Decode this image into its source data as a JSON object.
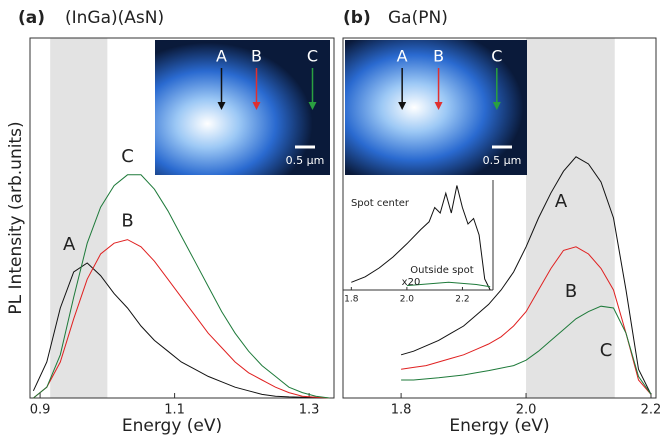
{
  "chart_data": [
    {
      "type": "line",
      "panel_label": "(a)",
      "title": "(InGa)(AsN)",
      "xlabel": "Energy (eV)",
      "ylabel": "PL Intensity (arb.units)",
      "xlim": [
        0.885,
        1.337
      ],
      "ylim": [
        0,
        100
      ],
      "xticks": [
        0.9,
        1.1,
        1.3
      ],
      "highlight_range": [
        0.915,
        1.0
      ],
      "x": [
        0.89,
        0.91,
        0.93,
        0.95,
        0.97,
        0.99,
        1.01,
        1.03,
        1.05,
        1.07,
        1.09,
        1.11,
        1.13,
        1.15,
        1.17,
        1.19,
        1.21,
        1.23,
        1.25,
        1.27,
        1.29,
        1.31,
        1.33
      ],
      "series": [
        {
          "name": "A",
          "color": "#111111",
          "values": [
            2,
            10,
            25,
            35,
            37.5,
            34,
            29,
            25,
            20,
            16,
            13,
            10,
            8,
            6,
            4.5,
            3,
            2,
            1,
            0.5,
            0.3,
            0.2,
            0.1,
            0
          ]
        },
        {
          "name": "B",
          "color": "#e02020",
          "values": [
            0,
            3,
            10,
            22,
            33,
            40,
            43,
            44,
            42,
            38,
            33,
            28,
            23,
            18,
            14,
            10,
            7,
            5,
            3,
            1.5,
            0.5,
            0.2,
            0
          ]
        },
        {
          "name": "C",
          "color": "#1e7a3a",
          "values": [
            0,
            3,
            12,
            28,
            43,
            53,
            59,
            62,
            62,
            58,
            52,
            45,
            38,
            31,
            24,
            18,
            13,
            9,
            6,
            3,
            1.5,
            0.5,
            0
          ]
        }
      ],
      "inset_image": {
        "labels": [
          "A",
          "B",
          "C"
        ],
        "scale": "0.5 μm"
      }
    },
    {
      "type": "line",
      "panel_label": "(b)",
      "title": "Ga(PN)",
      "xlabel": "Energy (eV)",
      "xlim": [
        1.707,
        2.208
      ],
      "ylim": [
        0,
        100
      ],
      "xticks": [
        1.8,
        {
          "value": 2,
          "label": "2.0"
        },
        2.2
      ],
      "highlight_range": [
        2.0,
        2.142
      ],
      "x": [
        1.8,
        1.82,
        1.84,
        1.86,
        1.88,
        1.9,
        1.92,
        1.94,
        1.96,
        1.98,
        2.0,
        2.02,
        2.04,
        2.06,
        2.08,
        2.1,
        2.12,
        2.14,
        2.16,
        2.18,
        2.2
      ],
      "series": [
        {
          "name": "A",
          "color": "#111111",
          "values": [
            12,
            13,
            14.5,
            16,
            18,
            20,
            23,
            26,
            30,
            35,
            42,
            50,
            57,
            63,
            67,
            65,
            60,
            50,
            30,
            8,
            1
          ]
        },
        {
          "name": "B",
          "color": "#e02020",
          "values": [
            8,
            8.5,
            9,
            10,
            11,
            12,
            13.5,
            15,
            17,
            20,
            24,
            30,
            36,
            41,
            42,
            40,
            36,
            30,
            18,
            5,
            1
          ]
        },
        {
          "name": "C",
          "color": "#1e7a3a",
          "values": [
            5,
            5,
            5.3,
            5.6,
            6,
            6.4,
            7,
            7.6,
            8.3,
            9,
            10.5,
            13,
            16,
            19,
            22,
            24,
            25.5,
            25,
            18,
            6,
            1
          ]
        }
      ],
      "inset_image": {
        "labels": [
          "A",
          "B",
          "C"
        ],
        "scale": "0.5 μm"
      },
      "inset_plot": {
        "xlim": [
          1.77,
          2.31
        ],
        "ylim": [
          0,
          100
        ],
        "xticks": [
          1.8,
          {
            "value": 2,
            "label": "2.0"
          },
          2.2
        ],
        "note": "x20",
        "series": [
          {
            "name": "Spot center",
            "color": "#111111",
            "x": [
              1.8,
              1.85,
              1.9,
              1.95,
              2.0,
              2.05,
              2.08,
              2.1,
              2.12,
              2.14,
              2.16,
              2.18,
              2.2,
              2.22,
              2.24,
              2.26,
              2.28,
              2.3
            ],
            "values": [
              7,
              12,
              20,
              30,
              42,
              55,
              62,
              75,
              70,
              88,
              70,
              95,
              75,
              60,
              65,
              50,
              10,
              0
            ]
          },
          {
            "name": "Outside spot",
            "color": "#1e7a3a",
            "x": [
              2.0,
              2.05,
              2.1,
              2.15,
              2.2,
              2.25,
              2.3
            ],
            "values": [
              4,
              5,
              6,
              7,
              6,
              5,
              3
            ]
          }
        ]
      }
    }
  ]
}
